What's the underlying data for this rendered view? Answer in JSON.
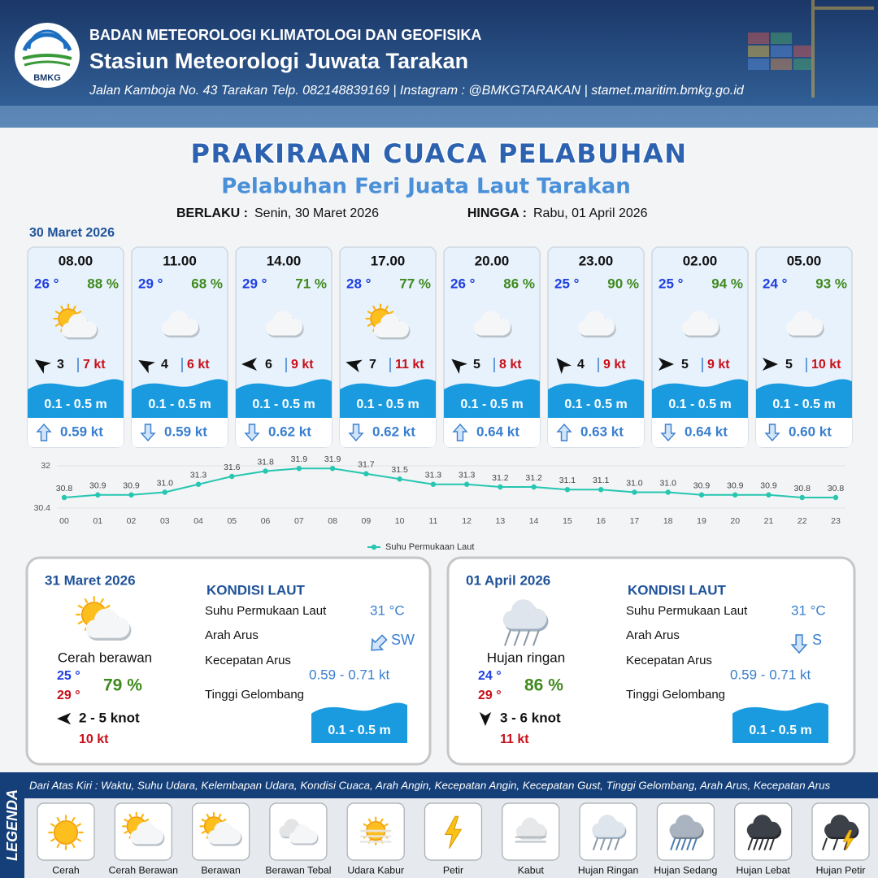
{
  "header": {
    "logo_text": "BMKG",
    "agency": "BADAN METEOROLOGI KLIMATOLOGI DAN GEOFISIKA",
    "station": "Stasiun Meteorologi Juwata Tarakan",
    "contact": "Jalan Kamboja No. 43 Tarakan  Telp. 082148839169 | Instagram : @BMKGTARAKAN | stamet.maritim.bmkg.go.id"
  },
  "title": "PRAKIRAAN CUACA PELABUHAN",
  "subtitle": "Pelabuhan Feri Juata Laut Tarakan",
  "validity": {
    "from_label": "BERLAKU :",
    "from": "Senin, 30 Maret 2026",
    "to_label": "HINGGA :",
    "to": "Rabu, 01 April 2026"
  },
  "today": {
    "date": "30 Maret 2026",
    "hours": [
      {
        "time": "08.00",
        "temperature": "26 °",
        "humidity": "88 %",
        "wind": "3",
        "gust": "7 kt",
        "wave": "0.1 - 0.5 m",
        "current": "0.59 kt"
      },
      {
        "time": "11.00",
        "temperature": "29 °",
        "humidity": "68 %",
        "wind": "4",
        "gust": "6 kt",
        "wave": "0.1 - 0.5 m",
        "current": "0.59 kt"
      },
      {
        "time": "14.00",
        "temperature": "29 °",
        "humidity": "71 %",
        "wind": "6",
        "gust": "9 kt",
        "wave": "0.1 - 0.5 m",
        "current": "0.62 kt"
      },
      {
        "time": "17.00",
        "temperature": "28 °",
        "humidity": "77 %",
        "wind": "7",
        "gust": "11 kt",
        "wave": "0.1 - 0.5 m",
        "current": "0.62 kt"
      },
      {
        "time": "20.00",
        "temperature": "26 °",
        "humidity": "86 %",
        "wind": "5",
        "gust": "8 kt",
        "wave": "0.1 - 0.5 m",
        "current": "0.64 kt"
      },
      {
        "time": "23.00",
        "temperature": "25 °",
        "humidity": "90 %",
        "wind": "4",
        "gust": "9 kt",
        "wave": "0.1 - 0.5 m",
        "current": "0.63 kt"
      },
      {
        "time": "02.00",
        "temperature": "25 °",
        "humidity": "94 %",
        "wind": "5",
        "gust": "9 kt",
        "wave": "0.1 - 0.5 m",
        "current": "0.64 kt"
      },
      {
        "time": "05.00",
        "temperature": "24 °",
        "humidity": "93 %",
        "wind": "5",
        "gust": "10 kt",
        "wave": "0.1 - 0.5 m",
        "current": "0.60 kt"
      }
    ]
  },
  "chart_data": {
    "type": "line",
    "categories": [
      "00",
      "01",
      "02",
      "03",
      "04",
      "05",
      "06",
      "07",
      "08",
      "09",
      "10",
      "11",
      "12",
      "13",
      "14",
      "15",
      "16",
      "17",
      "18",
      "19",
      "20",
      "21",
      "22",
      "23"
    ],
    "series": [
      {
        "name": "Suhu Permukaan Laut",
        "color": "#26c6b0",
        "values": [
          30.8,
          30.9,
          30.9,
          31.0,
          31.3,
          31.6,
          31.8,
          31.9,
          31.9,
          31.7,
          31.5,
          31.3,
          31.3,
          31.2,
          31.2,
          31.1,
          31.1,
          31.0,
          31.0,
          30.9,
          30.9,
          30.9,
          30.8,
          30.8
        ],
        "value_labels": [
          "30.8",
          "30.9",
          "30.9",
          "31.0",
          "31.3",
          "31.6",
          "31.8",
          "31.9",
          "31.9",
          "31.7",
          "31.5",
          "31.3",
          "31.3",
          "31.2",
          "31.2",
          "31.1",
          "31.1",
          "31.0",
          "31.0",
          "30.9",
          "30.9",
          "30.9",
          "30.8",
          "30.8"
        ]
      }
    ],
    "ylim": [
      30.4,
      32
    ],
    "yticks": [
      30.4,
      32
    ],
    "grid": true
  },
  "daily": [
    {
      "date": "31 Maret 2026",
      "condition": "Cerah berawan",
      "temp_min": "25 °",
      "temp_max": "29 °",
      "humidity": "79 %",
      "wind": "2  - 5 knot",
      "gust": "10 kt",
      "sea_title": "KONDISI LAUT",
      "sst_label": "Suhu Permukaan Laut",
      "sst": "31 °C",
      "current_dir_label": "Arah Arus",
      "current_dir": "SW",
      "current_speed_label": "Kecepatan Arus",
      "current_speed": "0.59 - 0.71 kt",
      "wave_label": "Tinggi Gelombang",
      "wave": "0.1 - 0.5 m"
    },
    {
      "date": "01 April 2026",
      "condition": "Hujan ringan",
      "temp_min": "24 °",
      "temp_max": "29 °",
      "humidity": "86 %",
      "wind": "3  - 6 knot",
      "gust": "11 kt",
      "sea_title": "KONDISI LAUT",
      "sst_label": "Suhu Permukaan Laut",
      "sst": "31 °C",
      "current_dir_label": "Arah Arus",
      "current_dir": "S",
      "current_speed_label": "Kecepatan Arus",
      "current_speed": "0.59 - 0.71 kt",
      "wave_label": "Tinggi Gelombang",
      "wave": "0.1 - 0.5 m"
    }
  ],
  "legend": {
    "title": "LEGENDA",
    "description": "Dari Atas Kiri : Waktu, Suhu Udara, Kelembapan Udara, Kondisi Cuaca, Arah Angin, Kecepatan Angin, Kecepatan Gust, Tinggi Gelombang, Arah Arus, Kecepatan Arus",
    "items": [
      "Cerah",
      "Cerah Berawan",
      "Berawan",
      "Berawan Tebal",
      "Udara Kabur",
      "Petir",
      "Kabut",
      "Hujan Ringan",
      "Hujan Sedang",
      "Hujan Lebat",
      "Hujan Petir"
    ]
  }
}
